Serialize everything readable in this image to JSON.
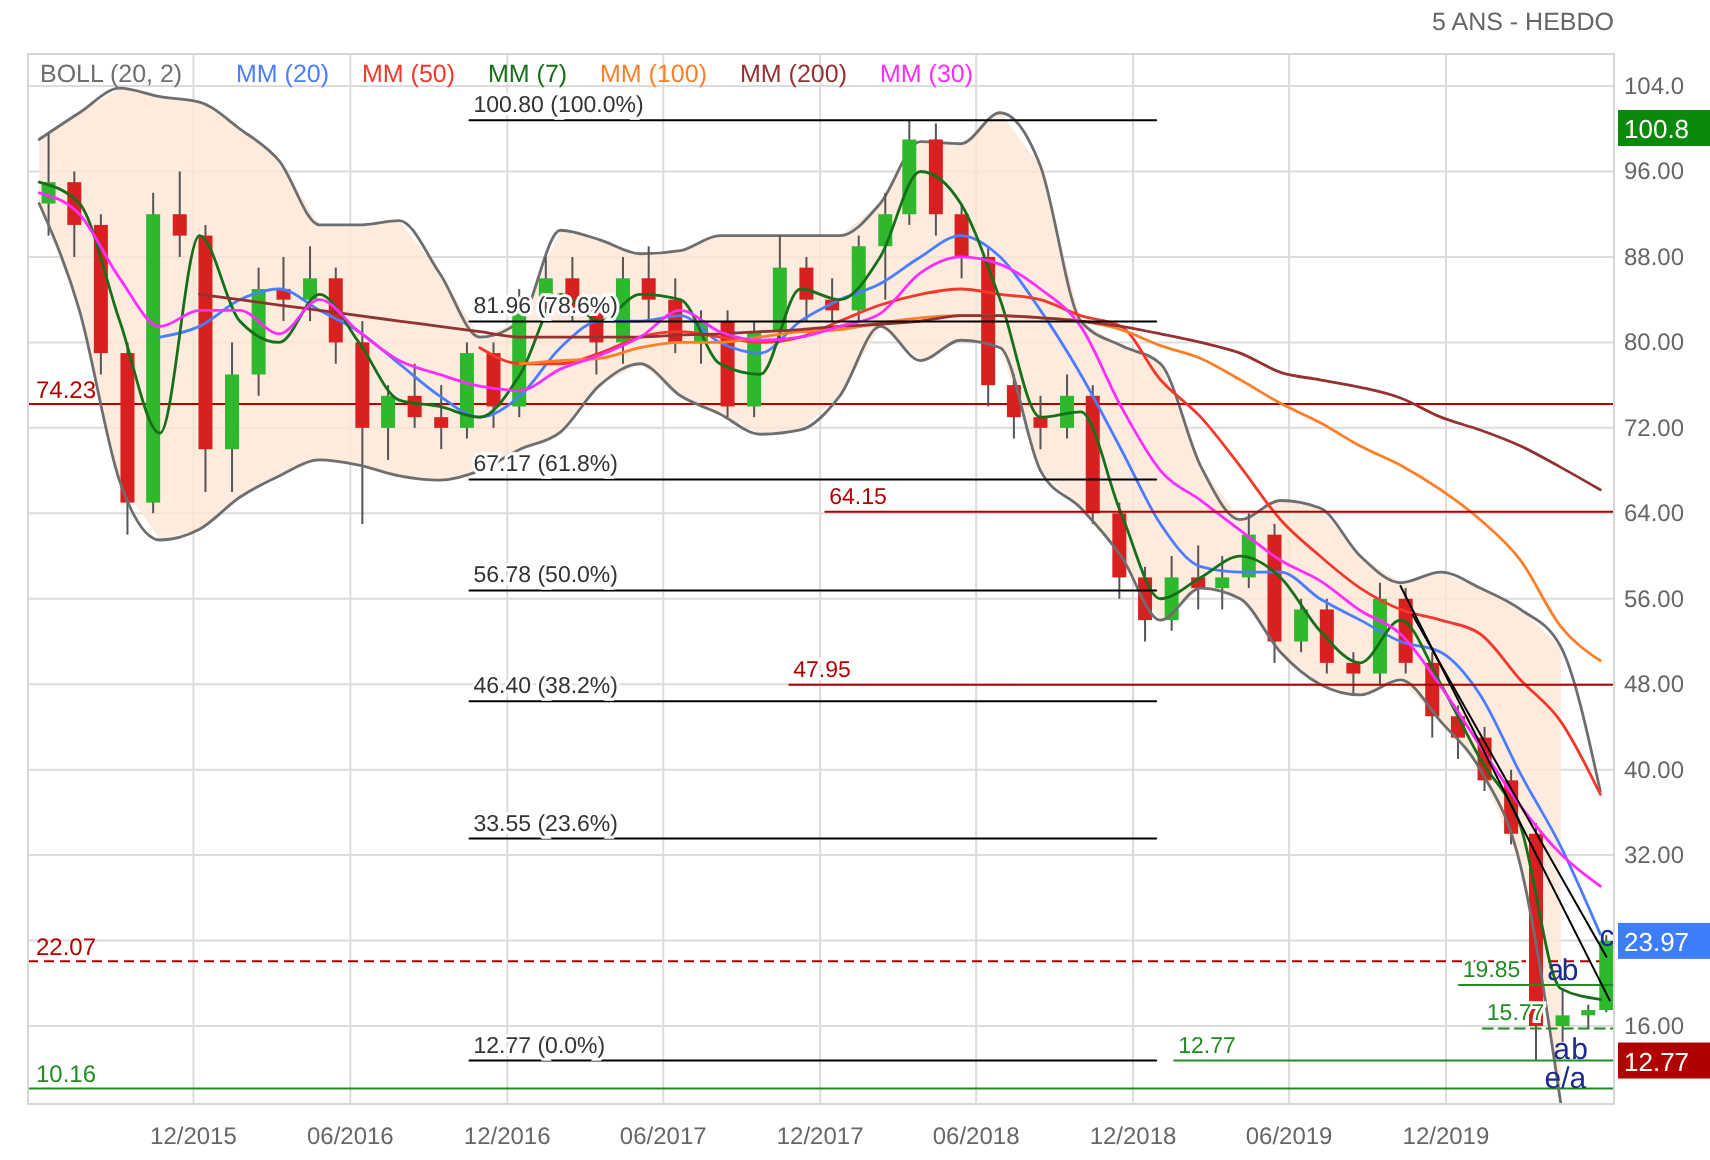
{
  "chart_data": {
    "type": "candlestick",
    "title": "5 ANS - HEBDO",
    "x": [
      "2015-06-15",
      "2015-07-15",
      "2015-08-15",
      "2015-09-15",
      "2015-10-15",
      "2015-11-15",
      "2015-12-15",
      "2016-01-15",
      "2016-02-15",
      "2016-03-15",
      "2016-04-15",
      "2016-05-15",
      "2016-06-15",
      "2016-07-15",
      "2016-08-15",
      "2016-09-15",
      "2016-10-15",
      "2016-11-15",
      "2016-12-15",
      "2017-01-15",
      "2017-02-15",
      "2017-03-15",
      "2017-04-15",
      "2017-05-15",
      "2017-06-15",
      "2017-07-15",
      "2017-08-15",
      "2017-09-15",
      "2017-10-15",
      "2017-11-15",
      "2017-12-15",
      "2018-01-15",
      "2018-02-15",
      "2018-03-15",
      "2018-04-15",
      "2018-05-15",
      "2018-06-15",
      "2018-07-15",
      "2018-08-15",
      "2018-09-15",
      "2018-10-15",
      "2018-11-15",
      "2018-12-15",
      "2019-01-15",
      "2019-02-15",
      "2019-03-15",
      "2019-04-15",
      "2019-05-15",
      "2019-06-15",
      "2019-07-15",
      "2019-08-15",
      "2019-09-15",
      "2019-10-15",
      "2019-11-15",
      "2019-12-15",
      "2020-01-15",
      "2020-02-15",
      "2020-03-15",
      "2020-04-15",
      "2020-05-15",
      "2020-06-05"
    ],
    "ohlc": [
      [
        93,
        99.5,
        90,
        95
      ],
      [
        95,
        96,
        88,
        91
      ],
      [
        91,
        92,
        77,
        79
      ],
      [
        79,
        80,
        62,
        65
      ],
      [
        65,
        94,
        64,
        92
      ],
      [
        92,
        96,
        88,
        90
      ],
      [
        90,
        91,
        66,
        70
      ],
      [
        70,
        80,
        66,
        77
      ],
      [
        77,
        87,
        75,
        85
      ],
      [
        85,
        88,
        82,
        84
      ],
      [
        84,
        89,
        82,
        86
      ],
      [
        86,
        87,
        78,
        80
      ],
      [
        80,
        82,
        63,
        72
      ],
      [
        72,
        76,
        69,
        75
      ],
      [
        75,
        78,
        72,
        73
      ],
      [
        73,
        76,
        70,
        72
      ],
      [
        72,
        80,
        71,
        79
      ],
      [
        79,
        80,
        72,
        74
      ],
      [
        74,
        85,
        73,
        84
      ],
      [
        84,
        88,
        82,
        86
      ],
      [
        86,
        88,
        82,
        83
      ],
      [
        83,
        84,
        77,
        80
      ],
      [
        80,
        88,
        78,
        86
      ],
      [
        86,
        89,
        82,
        84
      ],
      [
        84,
        86,
        79,
        80
      ],
      [
        80,
        83,
        78,
        82
      ],
      [
        82,
        83,
        73,
        74
      ],
      [
        74,
        82,
        73,
        81
      ],
      [
        81,
        90,
        80,
        87
      ],
      [
        87,
        88,
        82,
        84
      ],
      [
        84,
        86,
        82,
        83
      ],
      [
        83,
        90,
        82,
        89
      ],
      [
        89,
        94,
        84,
        92
      ],
      [
        92,
        100.8,
        91,
        99
      ],
      [
        99,
        100.5,
        90,
        92
      ],
      [
        92,
        93,
        86,
        88
      ],
      [
        88,
        89,
        74,
        76
      ],
      [
        76,
        77,
        71,
        73
      ],
      [
        73,
        75,
        70,
        72
      ],
      [
        72,
        77,
        71,
        75
      ],
      [
        75,
        76,
        63,
        64
      ],
      [
        64,
        65,
        56,
        58
      ],
      [
        58,
        59,
        52,
        54
      ],
      [
        54,
        60,
        53,
        58
      ],
      [
        58,
        61,
        55,
        57
      ],
      [
        57,
        60,
        55,
        58
      ],
      [
        58,
        64,
        57,
        62
      ],
      [
        62,
        63,
        50,
        52
      ],
      [
        52,
        56,
        51,
        55
      ],
      [
        55,
        56,
        49,
        50
      ],
      [
        50,
        51,
        47,
        49
      ],
      [
        49,
        57.5,
        48,
        56
      ],
      [
        56,
        57,
        49,
        50
      ],
      [
        50,
        51,
        43,
        45
      ],
      [
        45,
        46,
        41,
        43
      ],
      [
        43,
        44,
        38,
        39
      ],
      [
        39,
        40,
        33,
        34
      ],
      [
        34,
        35,
        12.77,
        16
      ],
      [
        16,
        19.5,
        14.5,
        17
      ],
      [
        17,
        18,
        15.8,
        17.5
      ],
      [
        17.5,
        24.5,
        17.3,
        23.97
      ]
    ],
    "colors": [
      "#2db82d",
      "#d92020",
      "#d92020",
      "#d92020",
      "#2db82d",
      "#d92020",
      "#d92020",
      "#2db82d",
      "#2db82d",
      "#d92020",
      "#2db82d",
      "#d92020",
      "#d92020",
      "#2db82d",
      "#d92020",
      "#d92020",
      "#2db82d",
      "#d92020",
      "#2db82d",
      "#2db82d",
      "#d92020",
      "#d92020",
      "#2db82d",
      "#d92020",
      "#d92020",
      "#2db82d",
      "#d92020",
      "#2db82d",
      "#2db82d",
      "#d92020",
      "#d92020",
      "#2db82d",
      "#2db82d",
      "#2db82d",
      "#d92020",
      "#d92020",
      "#d92020",
      "#d92020",
      "#d92020",
      "#2db82d",
      "#d92020",
      "#d92020",
      "#d92020",
      "#2db82d",
      "#d92020",
      "#2db82d",
      "#2db82d",
      "#d92020",
      "#2db82d",
      "#d92020",
      "#d92020",
      "#2db82d",
      "#d92020",
      "#d92020",
      "#d92020",
      "#d92020",
      "#d92020",
      "#d92020",
      "#2db82d",
      "#2db82d",
      "#2db82d"
    ],
    "series": [
      {
        "name": "BOLL (20, 2)",
        "type": "line",
        "color": "#6e6e6e",
        "x": [
          "2015-06-04",
          "2015-07-21",
          "2015-09-06",
          "2015-10-23",
          "2015-12-08",
          "2016-01-24",
          "2016-03-10",
          "2016-04-26",
          "2016-06-11",
          "2016-07-28",
          "2016-09-13",
          "2016-10-30",
          "2016-12-16",
          "2017-02-01",
          "2017-03-19",
          "2017-05-05",
          "2017-06-21",
          "2017-08-06",
          "2017-09-22",
          "2017-11-08",
          "2017-12-24",
          "2018-02-09",
          "2018-03-28",
          "2018-05-14",
          "2018-06-29",
          "2018-08-15",
          "2018-10-01",
          "2018-11-17",
          "2019-01-02",
          "2019-02-18",
          "2019-04-05",
          "2019-05-22",
          "2019-07-07",
          "2019-08-23",
          "2019-10-09",
          "2019-11-25",
          "2020-01-10",
          "2020-02-26",
          "2020-04-13",
          "2020-05-29"
        ],
        "values": [
          99,
          101.5,
          103.8,
          103,
          102.5,
          100,
          97,
          91,
          91,
          91.4,
          86.5,
          80.5,
          82,
          90.5,
          89.6,
          88.3,
          88.6,
          90,
          90,
          90,
          90,
          93,
          98.8,
          98.6,
          101.5,
          96.5,
          82,
          79.7,
          78,
          68.4,
          63.4,
          65.2,
          64.5,
          60,
          57.5,
          58.5,
          57,
          55,
          51.5,
          38
        ],
        "upper": [
          99,
          101.5,
          103.8,
          103,
          102.5,
          100,
          97,
          91,
          91,
          91.4,
          86.5,
          80.5,
          82,
          90.5,
          89.6,
          88.3,
          88.6,
          90,
          90,
          90,
          90,
          93,
          98.8,
          98.6,
          101.5,
          96.5,
          82,
          79.7,
          78,
          68.4,
          63.4,
          65.2,
          64.5,
          60,
          57.5,
          58.5,
          57,
          55,
          51.5,
          null
        ],
        "lower": [
          93,
          83,
          67,
          61.5,
          62.5,
          65.5,
          67.5,
          69,
          68.5,
          67.5,
          67.1,
          68,
          70,
          71.6,
          76,
          78,
          75,
          73.3,
          71.4,
          71.8,
          75,
          81.5,
          78.3,
          80.2,
          79.5,
          68,
          64.5,
          60,
          54,
          57,
          56,
          51,
          48,
          47,
          48.4,
          44.5,
          40,
          31,
          8.7,
          null
        ]
      },
      {
        "type": "line",
        "color": "#6e6e6e",
        "x": [
          "2015-06-04",
          "2015-07-21",
          "2015-09-06",
          "2015-10-23",
          "2015-12-08",
          "2016-01-24",
          "2016-03-10",
          "2016-04-26",
          "2016-06-11",
          "2016-07-28",
          "2016-09-13",
          "2016-10-30",
          "2016-12-16",
          "2017-02-01",
          "2017-03-19",
          "2017-05-05",
          "2017-06-21",
          "2017-08-06",
          "2017-09-22",
          "2017-11-08",
          "2017-12-24",
          "2018-02-09",
          "2018-03-28",
          "2018-05-14",
          "2018-06-29",
          "2018-08-15",
          "2018-10-01",
          "2018-11-17",
          "2019-01-02",
          "2019-02-18",
          "2019-04-05",
          "2019-05-22",
          "2019-07-07",
          "2019-08-23",
          "2019-10-09",
          "2019-11-25",
          "2020-01-10",
          "2020-02-26",
          "2020-04-13"
        ],
        "values": [
          93,
          83,
          67,
          61.5,
          62.5,
          65.5,
          67.5,
          69,
          68.5,
          67.5,
          67.1,
          68,
          70,
          71.6,
          76,
          78,
          75,
          73.3,
          71.4,
          71.8,
          75,
          81.5,
          78.3,
          80.2,
          79.5,
          68,
          64.5,
          60,
          54,
          57,
          56,
          51,
          48,
          47,
          48.4,
          44.5,
          40,
          31,
          8.7
        ]
      },
      {
        "name": "MM (20)",
        "type": "line",
        "color": "#4a7dff",
        "x": [
          "2015-10-23",
          "2015-12-08",
          "2016-01-24",
          "2016-03-10",
          "2016-04-26",
          "2016-06-11",
          "2016-07-28",
          "2016-09-13",
          "2016-10-30",
          "2016-12-16",
          "2017-02-01",
          "2017-03-19",
          "2017-05-05",
          "2017-06-21",
          "2017-08-06",
          "2017-09-22",
          "2017-11-08",
          "2017-12-24",
          "2018-02-09",
          "2018-03-28",
          "2018-05-14",
          "2018-06-29",
          "2018-08-15",
          "2018-10-01",
          "2018-11-17",
          "2019-01-02",
          "2019-02-18",
          "2019-04-05",
          "2019-05-22",
          "2019-07-07",
          "2019-08-23",
          "2019-10-09",
          "2019-11-25",
          "2020-01-10",
          "2020-02-26",
          "2020-04-13",
          "2020-05-29"
        ],
        "values": [
          80.5,
          81.5,
          84,
          85,
          83,
          81,
          78,
          75,
          73,
          75,
          79.5,
          82,
          82,
          82.5,
          80,
          79,
          82,
          84,
          85.5,
          88,
          90,
          88,
          83,
          77,
          70,
          63,
          59,
          58.5,
          58.5,
          56,
          54,
          52,
          51,
          47,
          39.6,
          32.8,
          24.6
        ]
      },
      {
        "name": "MM (50)",
        "type": "line",
        "color": "#f5382c",
        "x": [
          "2016-10-30",
          "2016-12-16",
          "2017-02-01",
          "2017-03-19",
          "2017-05-05",
          "2017-06-21",
          "2017-08-06",
          "2017-09-22",
          "2017-11-08",
          "2017-12-24",
          "2018-02-09",
          "2018-03-28",
          "2018-05-14",
          "2018-06-29",
          "2018-08-15",
          "2018-10-01",
          "2018-11-17",
          "2019-01-02",
          "2019-02-18",
          "2019-04-05",
          "2019-05-22",
          "2019-07-07",
          "2019-08-23",
          "2019-10-09",
          "2019-11-25",
          "2020-01-10",
          "2020-02-26",
          "2020-04-13",
          "2020-05-29"
        ],
        "values": [
          79.5,
          78,
          78,
          79,
          80.5,
          81,
          80.5,
          80,
          80.5,
          82,
          83.5,
          84.5,
          85,
          84.5,
          84,
          82.5,
          81.5,
          76.5,
          73,
          68.4,
          63.4,
          60,
          57,
          55,
          54,
          52.7,
          48.4,
          44.5,
          37.7
        ]
      },
      {
        "name": "MM (7)",
        "type": "line",
        "color": "#16701a",
        "x": [
          "2015-06-04",
          "2015-07-21",
          "2015-09-06",
          "2015-10-23",
          "2015-12-08",
          "2016-01-24",
          "2016-03-10",
          "2016-04-26",
          "2016-06-11",
          "2016-07-28",
          "2016-09-13",
          "2016-10-30",
          "2016-12-16",
          "2017-02-01",
          "2017-03-19",
          "2017-05-05",
          "2017-06-21",
          "2017-08-06",
          "2017-09-22",
          "2017-11-08",
          "2017-12-24",
          "2018-02-09",
          "2018-03-28",
          "2018-05-14",
          "2018-06-29",
          "2018-08-15",
          "2018-10-01",
          "2018-11-17",
          "2019-01-02",
          "2019-02-18",
          "2019-04-05",
          "2019-05-22",
          "2019-07-07",
          "2019-08-23",
          "2019-10-09",
          "2019-11-25",
          "2020-01-10",
          "2020-02-26",
          "2020-04-13",
          "2020-05-29"
        ],
        "values": [
          95,
          93,
          82,
          71.5,
          90,
          82,
          80,
          84.5,
          80,
          74.6,
          74,
          73,
          77,
          84.5,
          82,
          84.5,
          84,
          78,
          77,
          85,
          84,
          88,
          96,
          93,
          84,
          73,
          73.5,
          64,
          56,
          58,
          60,
          58,
          53,
          50,
          54,
          48,
          41,
          34.7,
          19.5,
          18.5
        ]
      },
      {
        "name": "MM (100)",
        "type": "line",
        "color": "#ff7f27",
        "x": [
          "2016-12-16",
          "2017-02-01",
          "2017-03-19",
          "2017-05-05",
          "2017-06-21",
          "2017-08-06",
          "2017-09-22",
          "2017-11-08",
          "2017-12-24",
          "2018-02-09",
          "2018-03-28",
          "2018-05-14",
          "2018-06-29",
          "2018-08-15",
          "2018-10-01",
          "2018-11-17",
          "2019-01-02",
          "2019-02-18",
          "2019-04-05",
          "2019-05-22",
          "2019-07-07",
          "2019-08-23",
          "2019-10-09",
          "2019-11-25",
          "2020-01-10",
          "2020-02-26",
          "2020-04-13",
          "2020-05-29"
        ],
        "values": [
          78,
          78.3,
          78.5,
          79.5,
          80,
          80,
          80.5,
          81,
          81.2,
          81.8,
          82.3,
          82.5,
          82.5,
          82.3,
          82,
          81.2,
          79.7,
          78.5,
          76.5,
          74.3,
          72.5,
          70.3,
          68.5,
          66.2,
          63.4,
          59.6,
          53.4,
          50.2
        ]
      },
      {
        "name": "MM (200)",
        "type": "line",
        "color": "#943232",
        "x": [
          "2015-12-08",
          "2016-01-24",
          "2016-03-10",
          "2016-04-26",
          "2016-06-11",
          "2016-07-28",
          "2016-09-13",
          "2016-10-30",
          "2016-12-16",
          "2017-02-01",
          "2017-03-19",
          "2017-05-05",
          "2017-06-21",
          "2017-08-06",
          "2017-09-22",
          "2017-11-08",
          "2017-12-24",
          "2018-02-09",
          "2018-03-28",
          "2018-05-14",
          "2018-06-29",
          "2018-08-15",
          "2018-10-01",
          "2018-11-17",
          "2019-01-02",
          "2019-02-18",
          "2019-04-05",
          "2019-05-22",
          "2019-07-07",
          "2019-08-23",
          "2019-10-09",
          "2019-11-25",
          "2020-01-10",
          "2020-02-26",
          "2020-04-13",
          "2020-05-29"
        ],
        "values": [
          84.5,
          84,
          83.5,
          83,
          82.5,
          82,
          81.5,
          81,
          80.5,
          80.5,
          80.5,
          80.5,
          80.7,
          80.8,
          81,
          81.2,
          81.5,
          81.7,
          82,
          82.5,
          82.5,
          82.3,
          82,
          81.5,
          80.8,
          80,
          79,
          77.2,
          76.5,
          75.8,
          74.8,
          73,
          71.8,
          70.3,
          68.3,
          66.2
        ]
      },
      {
        "name": "MM (30)",
        "type": "line",
        "color": "#ff2dff",
        "x": [
          "2015-06-04",
          "2015-07-21",
          "2015-09-06",
          "2015-10-23",
          "2015-12-08",
          "2016-01-24",
          "2016-03-10",
          "2016-04-26",
          "2016-06-11",
          "2016-07-28",
          "2016-09-13",
          "2016-10-30",
          "2016-12-16",
          "2017-02-01",
          "2017-03-19",
          "2017-05-05",
          "2017-06-21",
          "2017-08-06",
          "2017-09-22",
          "2017-11-08",
          "2017-12-24",
          "2018-02-09",
          "2018-03-28",
          "2018-05-14",
          "2018-06-29",
          "2018-08-15",
          "2018-10-01",
          "2018-11-17",
          "2019-01-02",
          "2019-02-18",
          "2019-04-05",
          "2019-05-22",
          "2019-07-07",
          "2019-08-23",
          "2019-10-09",
          "2019-11-25",
          "2020-01-10",
          "2020-02-26",
          "2020-04-13",
          "2020-05-29"
        ],
        "values": [
          94,
          92,
          86,
          81.5,
          83,
          83,
          80.8,
          84,
          81,
          78.3,
          77,
          75.9,
          75.5,
          77.5,
          78.8,
          80.5,
          83,
          81,
          80.2,
          80.5,
          81.5,
          82.7,
          86.5,
          88,
          87.3,
          85,
          81.5,
          74,
          68,
          65.2,
          62.4,
          59.6,
          57.7,
          54.9,
          52.7,
          47.8,
          42.2,
          36.6,
          32.1,
          29.1
        ]
      },
      {
        "type": "line",
        "color": "#000000",
        "x": [
          "2016-10-18",
          "2018-12-28"
        ],
        "values": [
          100.8,
          100.8
        ]
      },
      {
        "type": "line",
        "color": "#000000",
        "x": [
          "2016-10-18",
          "2018-12-28"
        ],
        "values": [
          81.96,
          81.96
        ]
      },
      {
        "type": "line",
        "color": "#000000",
        "x": [
          "2016-10-18",
          "2018-12-28"
        ],
        "values": [
          67.17,
          67.17
        ]
      },
      {
        "type": "line",
        "color": "#000000",
        "x": [
          "2016-10-18",
          "2018-12-28"
        ],
        "values": [
          56.78,
          56.78
        ]
      },
      {
        "type": "line",
        "color": "#000000",
        "x": [
          "2016-10-18",
          "2018-12-28"
        ],
        "values": [
          46.4,
          46.4
        ]
      },
      {
        "type": "line",
        "color": "#000000",
        "x": [
          "2016-10-18",
          "2018-12-28"
        ],
        "values": [
          33.55,
          33.55
        ]
      },
      {
        "type": "line",
        "color": "#000000",
        "x": [
          "2016-10-18",
          "2018-12-28"
        ],
        "values": [
          12.77,
          12.77
        ]
      },
      {
        "type": "line",
        "color": "#b00000",
        "x": [
          "2017-12-07",
          "2020-06-14"
        ],
        "values": [
          64.15,
          64.15
        ]
      },
      {
        "type": "line",
        "color": "#b00000",
        "x": [
          "2017-10-26",
          "2020-06-14"
        ],
        "values": [
          47.95,
          47.95
        ]
      },
      {
        "type": "line",
        "color": "#228b22",
        "x": [
          "2019-01-18",
          "2020-06-14"
        ],
        "values": [
          12.77,
          12.77
        ]
      },
      {
        "type": "line",
        "color": "#228b22",
        "x": [
          "2019-12-16",
          "2020-06-14"
        ],
        "values": [
          19.85,
          19.85
        ]
      },
      {
        "type": "line",
        "color": "#228b22",
        "line_style": "dashed",
        "x": [
          "2020-01-13",
          "2020-06-14"
        ],
        "values": [
          15.77,
          15.77
        ]
      },
      {
        "type": "line",
        "color": "#000000",
        "x": [
          "2019-10-09",
          "2020-06-09"
        ],
        "values": [
          57.2,
          18.4
        ]
      },
      {
        "type": "line",
        "color": "#000000",
        "x": [
          "2019-10-23",
          "2020-06-05"
        ],
        "values": [
          54.5,
          22.5
        ]
      }
    ],
    "ref_lines": [
      {
        "axis": "y",
        "value": 74.23,
        "label": "74.23",
        "color": "#b00000"
      },
      {
        "axis": "y",
        "value": 22.07,
        "label": "22.07",
        "color": "#b00000",
        "line_style": "dashed"
      },
      {
        "axis": "y",
        "value": 10.16,
        "label": "10.16",
        "color": "#228b22"
      }
    ],
    "annotations": [
      {
        "text": "100.80 (100.0%)",
        "x": "2016-10-18",
        "y": 100.8
      },
      {
        "text": "81.96 (78.6%)",
        "x": "2016-10-18",
        "y": 81.96
      },
      {
        "text": "67.17 (61.8%)",
        "x": "2016-10-18",
        "y": 67.17
      },
      {
        "text": "56.78 (50.0%)",
        "x": "2016-10-18",
        "y": 56.78
      },
      {
        "text": "46.40 (38.2%)",
        "x": "2016-10-18",
        "y": 46.4
      },
      {
        "text": "33.55 (23.6%)",
        "x": "2016-10-18",
        "y": 33.55
      },
      {
        "text": "12.77 (0.0%)",
        "x": "2016-10-18",
        "y": 12.77
      },
      {
        "text": "64.15",
        "x": "2017-12-07",
        "y": 64.15
      },
      {
        "text": "47.95",
        "x": "2017-10-26",
        "y": 47.95
      },
      {
        "text": "12.77",
        "x": "2019-01-18",
        "y": 12.77
      },
      {
        "text": "19.85",
        "x": "2019-12-16",
        "y": 19.85
      },
      {
        "text": "15.77",
        "x": "2020-01-13",
        "y": 15.77
      },
      {
        "text": "a",
        "x": "2020-03-28",
        "y": 20.3
      },
      {
        "text": "b",
        "x": "2020-04-14",
        "y": 20.3
      },
      {
        "text": "c",
        "x": "2020-05-28",
        "y": 23.5
      },
      {
        "text": "a",
        "x": "2020-04-04",
        "y": 12.9
      },
      {
        "text": "b",
        "x": "2020-04-25",
        "y": 12.9
      },
      {
        "text": "e/a",
        "x": "2020-03-25",
        "y": 10.2
      },
      "100.8",
      {
        "text": "23.97",
        "x": "2020-06-05",
        "y": 23.97
      },
      {
        "text": "12.77",
        "x": "2020-06-14",
        "y": 12.77
      }
    ],
    "xlim": [
      "2015-05-22",
      "2020-06-14"
    ],
    "ylim": [
      8.7,
      107
    ],
    "xticks": [
      {
        "value": "2015-12-01",
        "label": "12/2015"
      },
      {
        "value": "2016-06-01",
        "label": "06/2016"
      },
      {
        "value": "2016-12-01",
        "label": "12/2016"
      },
      {
        "value": "2017-06-01",
        "label": "06/2017"
      },
      {
        "value": "2017-12-01",
        "label": "12/2017"
      },
      {
        "value": "2018-06-01",
        "label": "06/2018"
      },
      {
        "value": "2018-12-01",
        "label": "12/2018"
      },
      {
        "value": "2019-06-01",
        "label": "06/2019"
      },
      {
        "value": "2019-12-01",
        "label": "12/2019"
      }
    ],
    "yticks": [
      {
        "value": 16,
        "label": "16.00"
      },
      {
        "value": 24,
        "label": null
      },
      {
        "value": 32,
        "label": "32.00"
      },
      {
        "value": 40,
        "label": "40.00"
      },
      {
        "value": 48,
        "label": "48.00"
      },
      {
        "value": 56,
        "label": "56.00"
      },
      {
        "value": 64,
        "label": "64.00"
      },
      {
        "value": 72,
        "label": "72.00"
      },
      {
        "value": 80,
        "label": "80.00"
      },
      {
        "value": 88,
        "label": "88.00"
      },
      {
        "value": 96,
        "label": "96.00"
      },
      {
        "value": 104,
        "label": "104.0"
      }
    ],
    "grid": true,
    "legend": "top left"
  }
}
